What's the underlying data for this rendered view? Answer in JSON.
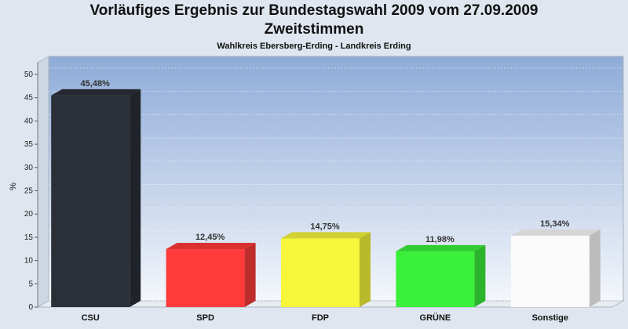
{
  "chart_data": {
    "type": "bar",
    "title": "Vorläufiges Ergebnis zur Bundestagswahl 2009 vom 27.09.2009",
    "subtitle": "Zweitstimmen",
    "caption": "Wahlkreis Ebersberg-Erding - Landkreis Erding",
    "xlabel": "",
    "ylabel": "%",
    "ylim": [
      0,
      50
    ],
    "yticks": [
      "0",
      "5",
      "10",
      "15",
      "20",
      "25",
      "30",
      "35",
      "40",
      "45",
      "50"
    ],
    "grid": true,
    "categories": [
      "CSU",
      "SPD",
      "FDP",
      "GRÜNE",
      "Sonstige"
    ],
    "values": [
      45.48,
      12.45,
      14.75,
      11.98,
      15.34
    ],
    "value_labels": [
      "45,48%",
      "12,45%",
      "14,75%",
      "11,98%",
      "15,34%"
    ],
    "colors": [
      "#2b2f37",
      "#ff3a3a",
      "#f6f63a",
      "#3af03a",
      "#fafafa"
    ]
  }
}
